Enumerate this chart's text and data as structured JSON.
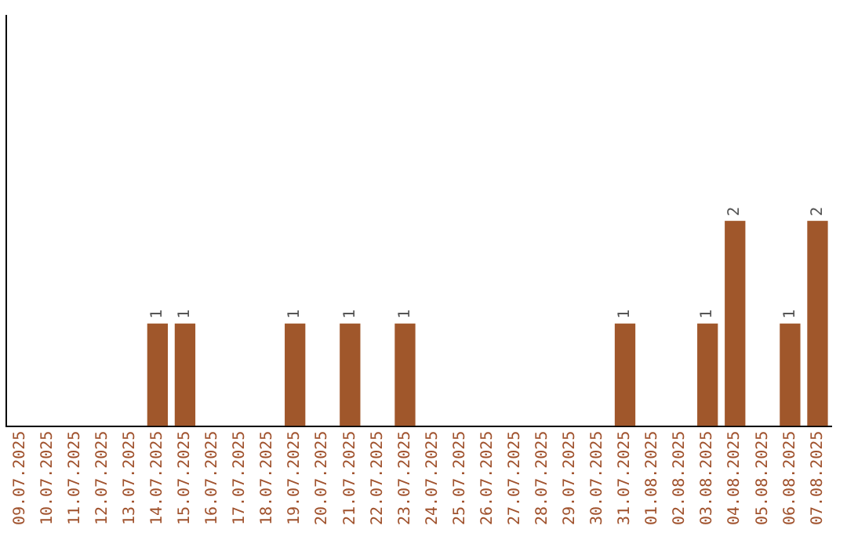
{
  "chart_data": {
    "type": "bar",
    "categories": [
      "09.07.2025",
      "10.07.2025",
      "11.07.2025",
      "12.07.2025",
      "13.07.2025",
      "14.07.2025",
      "15.07.2025",
      "16.07.2025",
      "17.07.2025",
      "18.07.2025",
      "19.07.2025",
      "20.07.2025",
      "21.07.2025",
      "22.07.2025",
      "23.07.2025",
      "24.07.2025",
      "25.07.2025",
      "26.07.2025",
      "27.07.2025",
      "28.07.2025",
      "29.07.2025",
      "30.07.2025",
      "31.07.2025",
      "01.08.2025",
      "02.08.2025",
      "03.08.2025",
      "04.08.2025",
      "05.08.2025",
      "06.08.2025",
      "07.08.2025"
    ],
    "values": [
      0,
      0,
      0,
      0,
      0,
      1,
      1,
      0,
      0,
      0,
      1,
      0,
      1,
      0,
      1,
      0,
      0,
      0,
      0,
      0,
      0,
      0,
      1,
      0,
      0,
      1,
      2,
      0,
      1,
      2
    ],
    "value_labels": [
      null,
      null,
      null,
      null,
      null,
      "1",
      "1",
      null,
      null,
      null,
      "1",
      null,
      "1",
      null,
      "1",
      null,
      null,
      null,
      null,
      null,
      null,
      null,
      "1",
      null,
      null,
      "1",
      "2",
      null,
      "1",
      "2"
    ],
    "color": "#a0572b",
    "ylim": [
      0,
      4
    ],
    "grid": false,
    "legend": false
  }
}
